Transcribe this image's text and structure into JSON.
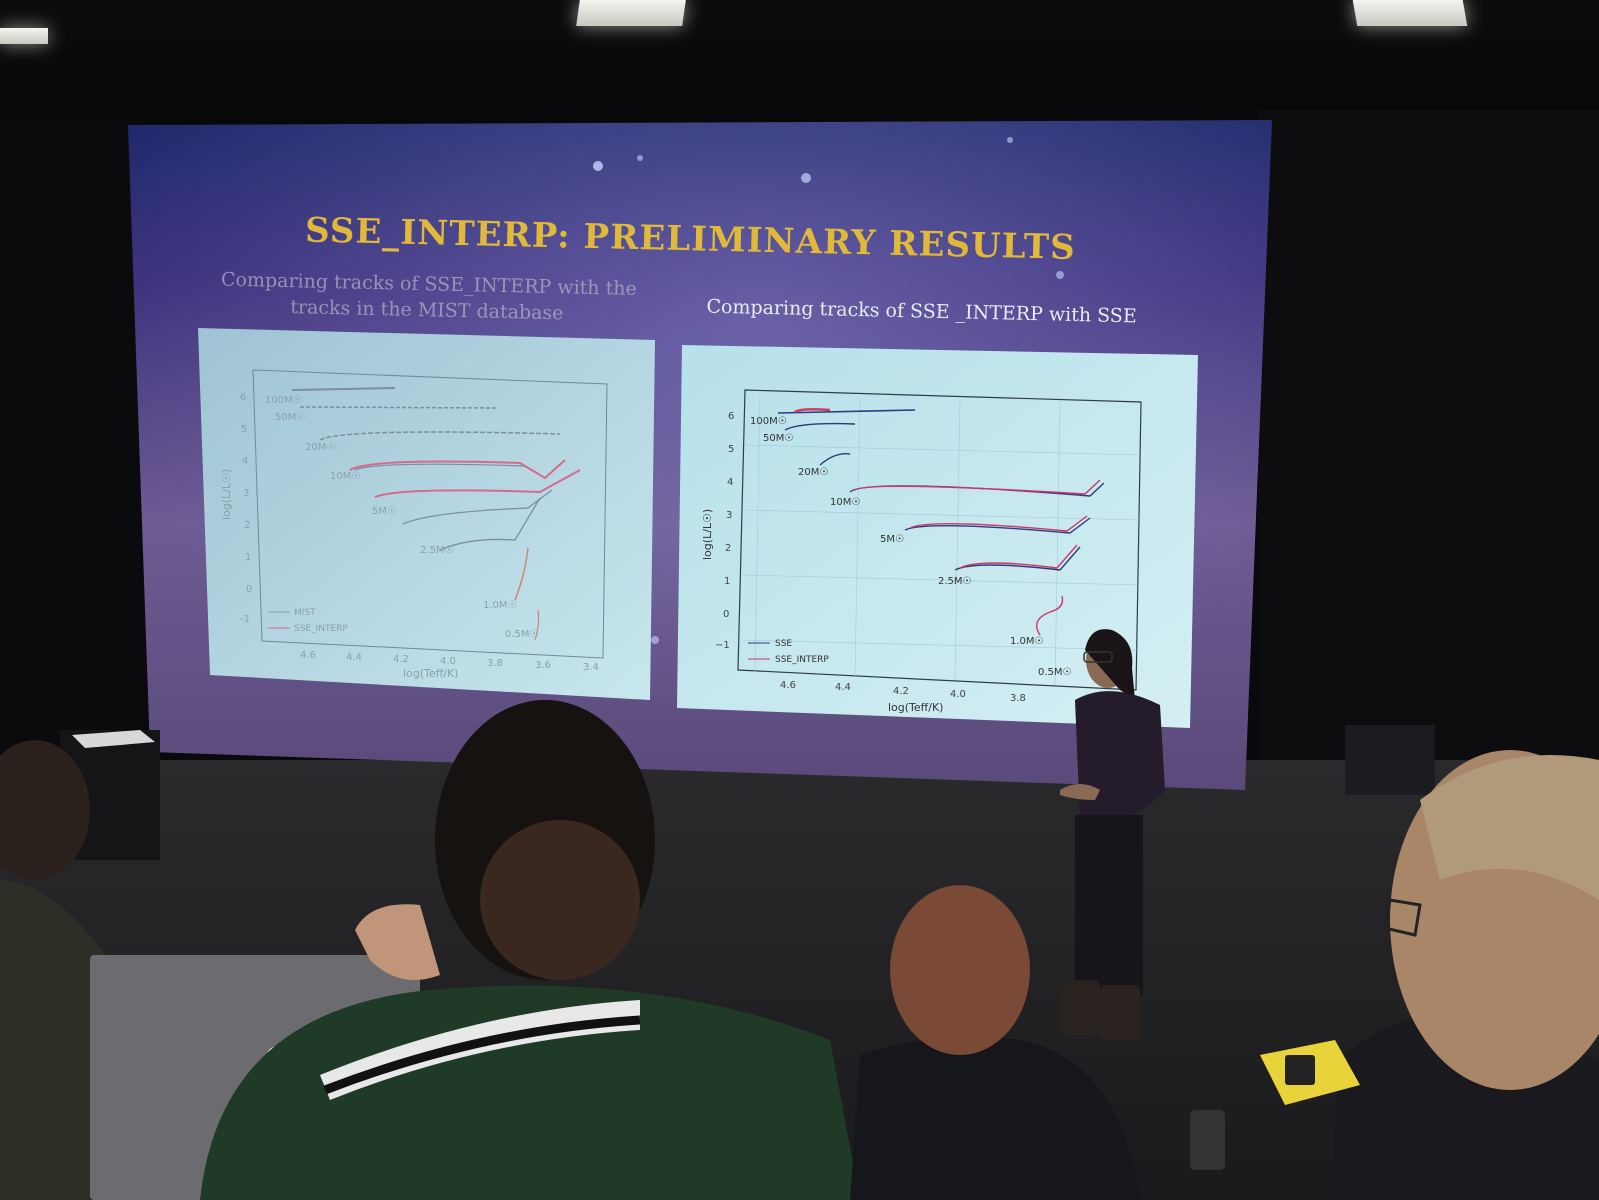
{
  "slide": {
    "title": "SSE_INTERP: PRELIMINARY RESULTS",
    "left_caption_line1": "Comparing tracks of SSE_INTERP with the",
    "left_caption_line2": "tracks in the MIST database",
    "right_caption": "Comparing tracks of SSE _INTERP with SSE"
  },
  "left_plot": {
    "xlabel": "log(Teff/K)",
    "ylabel": "log(L/L☉)",
    "xticks": [
      "4.6",
      "4.4",
      "4.2",
      "4.0",
      "3.8",
      "3.6",
      "3.4"
    ],
    "yticks": [
      "6",
      "5",
      "4",
      "3",
      "2",
      "1",
      "0",
      "-1"
    ],
    "legend": [
      "MIST",
      "SSE_INTERP"
    ],
    "mass_labels": [
      "100M☉",
      "50M☉",
      "20M☉",
      "10M☉",
      "5M☉",
      "2.5M☉",
      "1.0M☉",
      "0.5M☉"
    ]
  },
  "right_plot": {
    "xlabel": "log(Teff/K)",
    "ylabel": "log(L/L☉)",
    "xticks": [
      "4.6",
      "4.4",
      "4.2",
      "4.0",
      "3.8"
    ],
    "yticks": [
      "6",
      "5",
      "4",
      "3",
      "2",
      "1",
      "0",
      "−1"
    ],
    "legend": [
      "SSE",
      "SSE_INTERP"
    ],
    "mass_labels": [
      "100M☉",
      "50M☉",
      "20M☉",
      "10M☉",
      "5M☉",
      "2.5M☉",
      "1.0M☉",
      "0.5M☉"
    ]
  },
  "colors": {
    "title_gold": "#e1b93a",
    "slide_purple": "#3b2f7a",
    "plot_bg": "#bfe4ee",
    "track_red": "#d0356a"
  }
}
